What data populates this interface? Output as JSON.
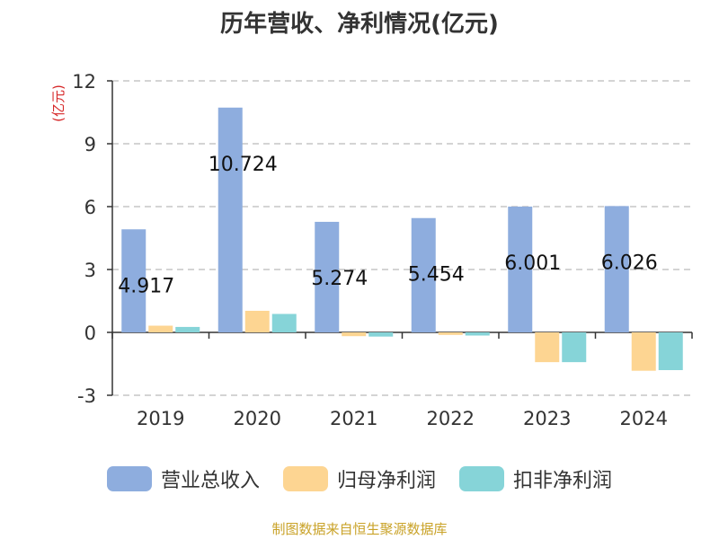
{
  "chart_data": {
    "type": "bar",
    "title": "历年营收、净利情况(亿元)",
    "ylabel": "(亿元)",
    "categories": [
      "2019",
      "2020",
      "2021",
      "2022",
      "2023",
      "2024"
    ],
    "ylim": [
      -3,
      12
    ],
    "yticks": [
      -3,
      0,
      3,
      6,
      9,
      12
    ],
    "grid": true,
    "legend_position": "bottom",
    "series": [
      {
        "name": "营业总收入",
        "color": "#8eadde",
        "values": [
          4.917,
          10.724,
          5.274,
          5.454,
          6.001,
          6.026
        ],
        "labels": [
          "4.917",
          "10.724",
          "5.274",
          "5.454",
          "6.001",
          "6.026"
        ]
      },
      {
        "name": "归母净利润",
        "color": "#fdd592",
        "values": [
          0.32,
          1.03,
          -0.18,
          -0.12,
          -1.42,
          -1.83
        ]
      },
      {
        "name": "扣非净利润",
        "color": "#86d4d8",
        "values": [
          0.26,
          0.88,
          -0.2,
          -0.15,
          -1.42,
          -1.8
        ]
      }
    ]
  },
  "source": "制图数据来自恒生聚源数据库"
}
